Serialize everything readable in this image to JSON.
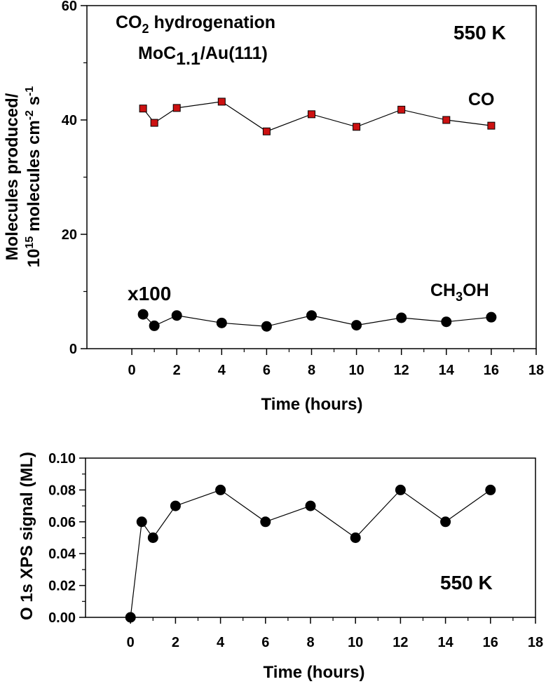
{
  "chart_data": [
    {
      "type": "line",
      "title_line1": "CO",
      "title_line1_sub": "2",
      "title_line1_rest": " hydrogenation",
      "title_line2": "MoC",
      "title_line2_sub": "1.1",
      "title_line2_rest": "/Au(111)",
      "temperature": "550 K",
      "xlabel": "Time (hours)",
      "ylabel_line1": "Molecules produced/",
      "ylabel_line2_a": "10",
      "ylabel_line2_sup1": "15",
      "ylabel_line2_b": " molecules cm",
      "ylabel_line2_sup2": "-2",
      "ylabel_line2_c": " s",
      "ylabel_line2_sup3": "-1",
      "xlim": [
        -2,
        18
      ],
      "ylim": [
        0,
        60
      ],
      "xticks": [
        0,
        2,
        4,
        6,
        8,
        10,
        12,
        14,
        16,
        18
      ],
      "yticks": [
        0,
        20,
        40,
        60
      ],
      "multiplier_label": "x100",
      "series": [
        {
          "name": "CO",
          "label": "CO",
          "marker": "square",
          "color": "#cc1111",
          "x": [
            0.5,
            1,
            2,
            4,
            6,
            8,
            10,
            12,
            14,
            16
          ],
          "values": [
            42.0,
            39.5,
            42.1,
            43.2,
            38.0,
            41.0,
            38.8,
            41.8,
            40.0,
            39.0
          ]
        },
        {
          "name": "CH3OH",
          "label_a": "CH",
          "label_sub": "3",
          "label_b": "OH",
          "marker": "circle",
          "color": "#000000",
          "x": [
            0.5,
            1,
            2,
            4,
            6,
            8,
            10,
            12,
            14,
            16
          ],
          "values": [
            6.0,
            4.0,
            5.8,
            4.5,
            3.9,
            5.8,
            4.1,
            5.4,
            4.7,
            5.5
          ]
        }
      ]
    },
    {
      "type": "line",
      "temperature": "550 K",
      "xlabel": "Time (hours)",
      "ylabel": "O 1s XPS signal (ML)",
      "xlim": [
        -2,
        18
      ],
      "ylim": [
        0,
        0.1
      ],
      "xticks": [
        0,
        2,
        4,
        6,
        8,
        10,
        12,
        14,
        16,
        18
      ],
      "yticks": [
        "0.00",
        "0.02",
        "0.04",
        "0.06",
        "0.08",
        "0.10"
      ],
      "series": [
        {
          "name": "O 1s",
          "marker": "circle",
          "color": "#000000",
          "x": [
            0,
            0.5,
            1,
            2,
            4,
            6,
            8,
            10,
            12,
            14,
            16
          ],
          "values": [
            0.0,
            0.06,
            0.05,
            0.07,
            0.08,
            0.06,
            0.07,
            0.05,
            0.08,
            0.06,
            0.08
          ]
        }
      ]
    }
  ]
}
